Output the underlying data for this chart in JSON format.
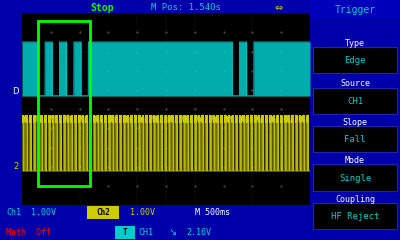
{
  "bg_color": "#0000AA",
  "screen_bg": "#000000",
  "ch1_color": "#00CCCC",
  "ch2_color": "#CCCC00",
  "green_box_color": "#00FF00",
  "sidebar_bg": "#000088",
  "title_color": "#00FF00",
  "cyan_color": "#00CCCC",
  "white": "#FFFFFF",
  "top_bar_text": "Stop",
  "mpos_text": "M Pos: 1.540s",
  "trigger_label": "Trigger",
  "type_label": "Type",
  "type_val": "Edge",
  "source_label": "Source",
  "source_val": "CH1",
  "slope_label": "Slope",
  "slope_val": "Fall",
  "mode_label": "Mode",
  "mode_val": "Single",
  "coupling_label": "Coupling",
  "coupling_val": "HF Reject",
  "ch1_label": "Ch1",
  "ch1_scale": "1.00V",
  "ch2_label": "Ch2",
  "ch2_scale": "1.00V",
  "time_scale": "M 500ms",
  "math_label": "Math  Off",
  "trigger_val": "2.16V",
  "dot_color": "#555555"
}
